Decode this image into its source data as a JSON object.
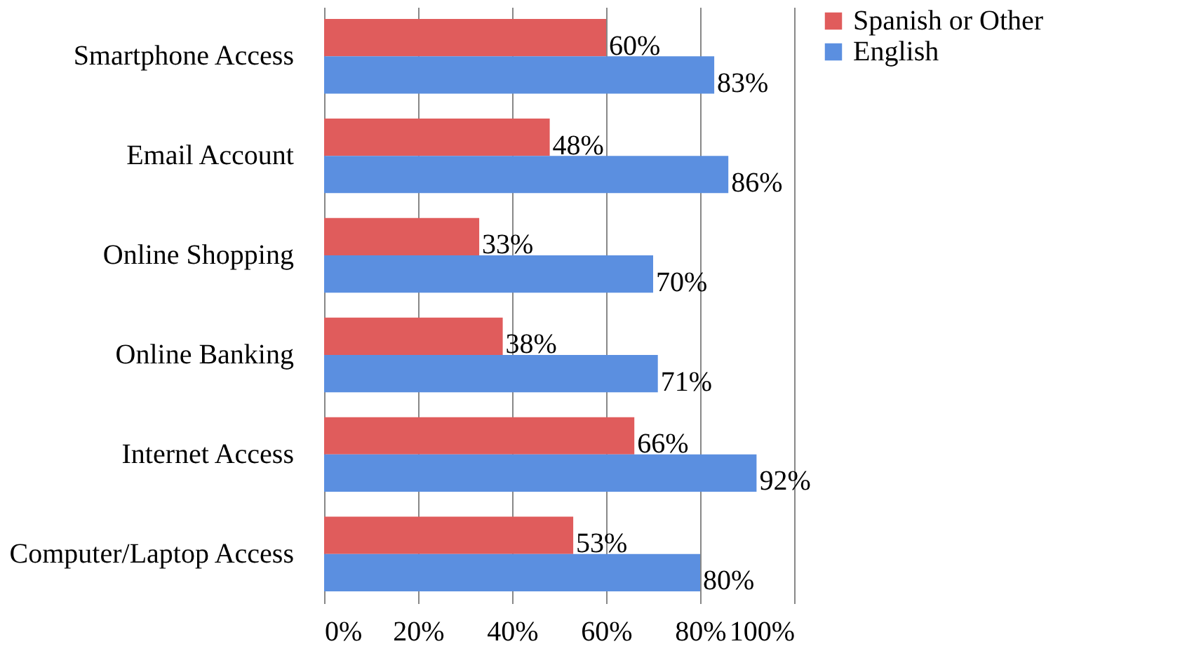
{
  "chart_data": {
    "type": "bar",
    "orientation": "horizontal",
    "categories": [
      "Smartphone Access",
      "Email Account",
      "Online Shopping",
      "Online Banking",
      "Internet Access",
      "Computer/Laptop Access"
    ],
    "series": [
      {
        "name": "Spanish or Other",
        "color": "#e05c5c",
        "values": [
          60,
          48,
          33,
          38,
          66,
          53
        ],
        "value_labels": [
          "60%",
          "48%",
          "33%",
          "38%",
          "66%",
          "53%"
        ]
      },
      {
        "name": "English",
        "color": "#5b8fe0",
        "values": [
          83,
          86,
          70,
          71,
          92,
          80
        ],
        "value_labels": [
          "83%",
          "86%",
          "70%",
          "71%",
          "92%",
          "80%"
        ]
      }
    ],
    "xlim": [
      0,
      100
    ],
    "xticks": [
      {
        "value": 0,
        "label": "0%"
      },
      {
        "value": 20,
        "label": "20%"
      },
      {
        "value": 40,
        "label": "40%"
      },
      {
        "value": 60,
        "label": "60%"
      },
      {
        "value": 80,
        "label": "80%"
      },
      {
        "value": 100,
        "label": "100%"
      }
    ],
    "grid": "x",
    "legend": "right"
  }
}
